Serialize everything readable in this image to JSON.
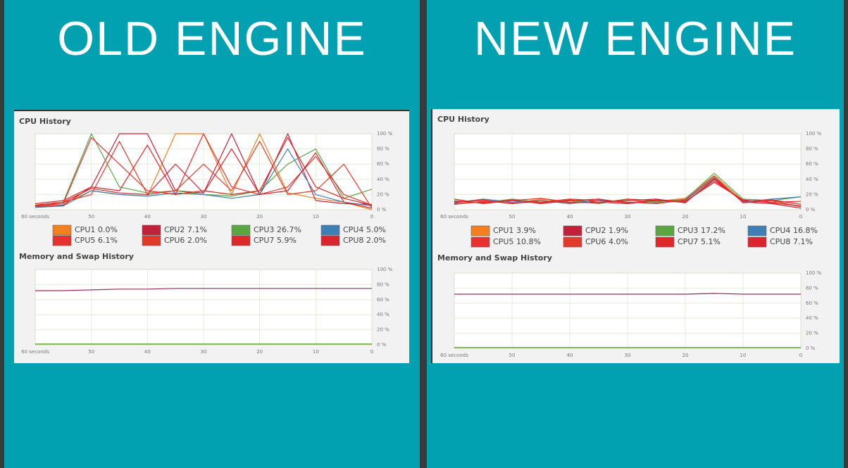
{
  "headings": [
    "OLD ENGINE",
    "NEW ENGINE"
  ],
  "chart_data": [
    {
      "type": "line",
      "title": "CPU History",
      "x": [
        60,
        55,
        50,
        45,
        40,
        35,
        30,
        25,
        20,
        15,
        10,
        5,
        0
      ],
      "xlim": [
        60,
        0
      ],
      "xticks": [
        {
          "value": 60,
          "label": "60 seconds"
        },
        50,
        40,
        30,
        20,
        10,
        0
      ],
      "ylim": [
        0,
        100
      ],
      "yticks": [
        {
          "value": 0,
          "label": "0 %"
        },
        {
          "value": 20,
          "label": "20 %"
        },
        {
          "value": 40,
          "label": "40 %"
        },
        {
          "value": 60,
          "label": "60 %"
        },
        {
          "value": 80,
          "label": "80 %"
        },
        {
          "value": 100,
          "label": "100 %"
        }
      ],
      "grid": true,
      "series": [
        {
          "name": "CPU1",
          "legend_value": "0.0%",
          "color": "#f57e20",
          "values": [
            5,
            8,
            25,
            20,
            18,
            100,
            100,
            20,
            100,
            22,
            15,
            10,
            0
          ]
        },
        {
          "name": "CPU2",
          "legend_value": "7.1%",
          "color": "#c4203a",
          "values": [
            4,
            6,
            30,
            100,
            100,
            25,
            22,
            100,
            20,
            100,
            12,
            8,
            7
          ]
        },
        {
          "name": "CPU3",
          "legend_value": "26.7%",
          "color": "#5aa642",
          "values": [
            6,
            10,
            100,
            30,
            22,
            25,
            20,
            18,
            25,
            60,
            80,
            15,
            27
          ]
        },
        {
          "name": "CPU4",
          "legend_value": "5.0%",
          "color": "#3f7fb5",
          "values": [
            3,
            5,
            25,
            20,
            18,
            22,
            20,
            15,
            20,
            80,
            20,
            10,
            5
          ]
        },
        {
          "name": "CPU5",
          "legend_value": "6.1%",
          "color": "#e8302e",
          "values": [
            5,
            8,
            95,
            60,
            25,
            20,
            100,
            30,
            20,
            30,
            70,
            20,
            6
          ]
        },
        {
          "name": "CPU6",
          "legend_value": "2.0%",
          "color": "#e23a2a",
          "values": [
            4,
            10,
            20,
            90,
            20,
            25,
            60,
            25,
            90,
            20,
            25,
            60,
            2
          ]
        },
        {
          "name": "CPU7",
          "legend_value": "5.9%",
          "color": "#e02828",
          "values": [
            8,
            12,
            30,
            25,
            85,
            20,
            25,
            20,
            25,
            95,
            30,
            15,
            6
          ]
        },
        {
          "name": "CPU8",
          "legend_value": "2.0%",
          "color": "#dc2430",
          "values": [
            6,
            10,
            28,
            22,
            20,
            60,
            22,
            80,
            20,
            25,
            75,
            10,
            2
          ]
        }
      ]
    },
    {
      "type": "line",
      "title": "Memory and Swap History",
      "x": [
        60,
        55,
        50,
        45,
        40,
        35,
        30,
        25,
        20,
        15,
        10,
        5,
        0
      ],
      "xlim": [
        60,
        0
      ],
      "xticks": [
        {
          "value": 60,
          "label": "60 seconds"
        },
        50,
        40,
        30,
        20,
        10,
        0
      ],
      "ylim": [
        0,
        100
      ],
      "yticks": [
        {
          "value": 0,
          "label": "0 %"
        },
        {
          "value": 20,
          "label": "20 %"
        },
        {
          "value": 40,
          "label": "40 %"
        },
        {
          "value": 60,
          "label": "60 %"
        },
        {
          "value": 80,
          "label": "80 %"
        },
        {
          "value": 100,
          "label": "100 %"
        }
      ],
      "grid": true,
      "series": [
        {
          "color": "#a02850",
          "values": [
            72,
            72,
            73,
            74,
            74,
            75,
            75,
            75,
            75,
            75,
            75,
            75,
            75
          ]
        },
        {
          "color": "#4e9a06",
          "values": [
            1,
            1,
            1,
            1,
            1,
            1,
            1,
            1,
            1,
            1,
            1,
            1,
            1
          ]
        }
      ]
    },
    {
      "type": "line",
      "title": "CPU History",
      "x": [
        60,
        55,
        50,
        45,
        40,
        35,
        30,
        25,
        20,
        15,
        10,
        5,
        0
      ],
      "xlim": [
        60,
        0
      ],
      "xticks": [
        {
          "value": 60,
          "label": "60 seconds"
        },
        50,
        40,
        30,
        20,
        10,
        0
      ],
      "ylim": [
        0,
        100
      ],
      "yticks": [
        {
          "value": 0,
          "label": "0 %"
        },
        {
          "value": 20,
          "label": "20 %"
        },
        {
          "value": 40,
          "label": "40 %"
        },
        {
          "value": 60,
          "label": "60 %"
        },
        {
          "value": 80,
          "label": "80 %"
        },
        {
          "value": 100,
          "label": "100 %"
        }
      ],
      "grid": true,
      "series": [
        {
          "name": "CPU1",
          "legend_value": "3.9%",
          "color": "#f57e20",
          "values": [
            10,
            12,
            8,
            14,
            10,
            12,
            9,
            11,
            15,
            45,
            12,
            10,
            4
          ]
        },
        {
          "name": "CPU2",
          "legend_value": "1.9%",
          "color": "#c4203a",
          "values": [
            8,
            10,
            12,
            9,
            13,
            10,
            8,
            12,
            10,
            40,
            10,
            8,
            2
          ]
        },
        {
          "name": "CPU3",
          "legend_value": "17.2%",
          "color": "#5aa642",
          "values": [
            12,
            9,
            14,
            10,
            12,
            8,
            13,
            10,
            14,
            48,
            14,
            12,
            17
          ]
        },
        {
          "name": "CPU4",
          "legend_value": "16.8%",
          "color": "#3f7fb5",
          "values": [
            9,
            14,
            10,
            12,
            8,
            13,
            10,
            9,
            12,
            42,
            10,
            14,
            17
          ]
        },
        {
          "name": "CPU5",
          "legend_value": "10.8%",
          "color": "#e8302e",
          "values": [
            14,
            8,
            12,
            15,
            10,
            9,
            14,
            12,
            10,
            38,
            12,
            10,
            11
          ]
        },
        {
          "name": "CPU6",
          "legend_value": "4.0%",
          "color": "#e23a2a",
          "values": [
            7,
            11,
            9,
            10,
            14,
            12,
            10,
            8,
            13,
            44,
            9,
            12,
            4
          ]
        },
        {
          "name": "CPU7",
          "legend_value": "5.1%",
          "color": "#e02828",
          "values": [
            11,
            9,
            13,
            8,
            12,
            14,
            9,
            13,
            11,
            36,
            13,
            9,
            5
          ]
        },
        {
          "name": "CPU8",
          "legend_value": "7.1%",
          "color": "#dc2430",
          "values": [
            10,
            13,
            8,
            12,
            9,
            10,
            12,
            14,
            9,
            41,
            11,
            13,
            7
          ]
        }
      ]
    },
    {
      "type": "line",
      "title": "Memory and Swap History",
      "x": [
        60,
        55,
        50,
        45,
        40,
        35,
        30,
        25,
        20,
        15,
        10,
        5,
        0
      ],
      "xlim": [
        60,
        0
      ],
      "xticks": [
        {
          "value": 60,
          "label": "60 seconds"
        },
        50,
        40,
        30,
        20,
        10,
        0
      ],
      "ylim": [
        0,
        100
      ],
      "yticks": [
        {
          "value": 0,
          "label": "0 %"
        },
        {
          "value": 20,
          "label": "20 %"
        },
        {
          "value": 40,
          "label": "40 %"
        },
        {
          "value": 60,
          "label": "60 %"
        },
        {
          "value": 80,
          "label": "80 %"
        },
        {
          "value": 100,
          "label": "100 %"
        }
      ],
      "grid": true,
      "series": [
        {
          "color": "#a02850",
          "values": [
            72,
            72,
            72,
            72,
            72,
            72,
            72,
            72,
            72,
            73,
            72,
            72,
            72
          ]
        },
        {
          "color": "#4e9a06",
          "values": [
            1,
            1,
            1,
            1,
            1,
            1,
            1,
            1,
            1,
            1,
            1,
            1,
            1
          ]
        }
      ]
    }
  ]
}
